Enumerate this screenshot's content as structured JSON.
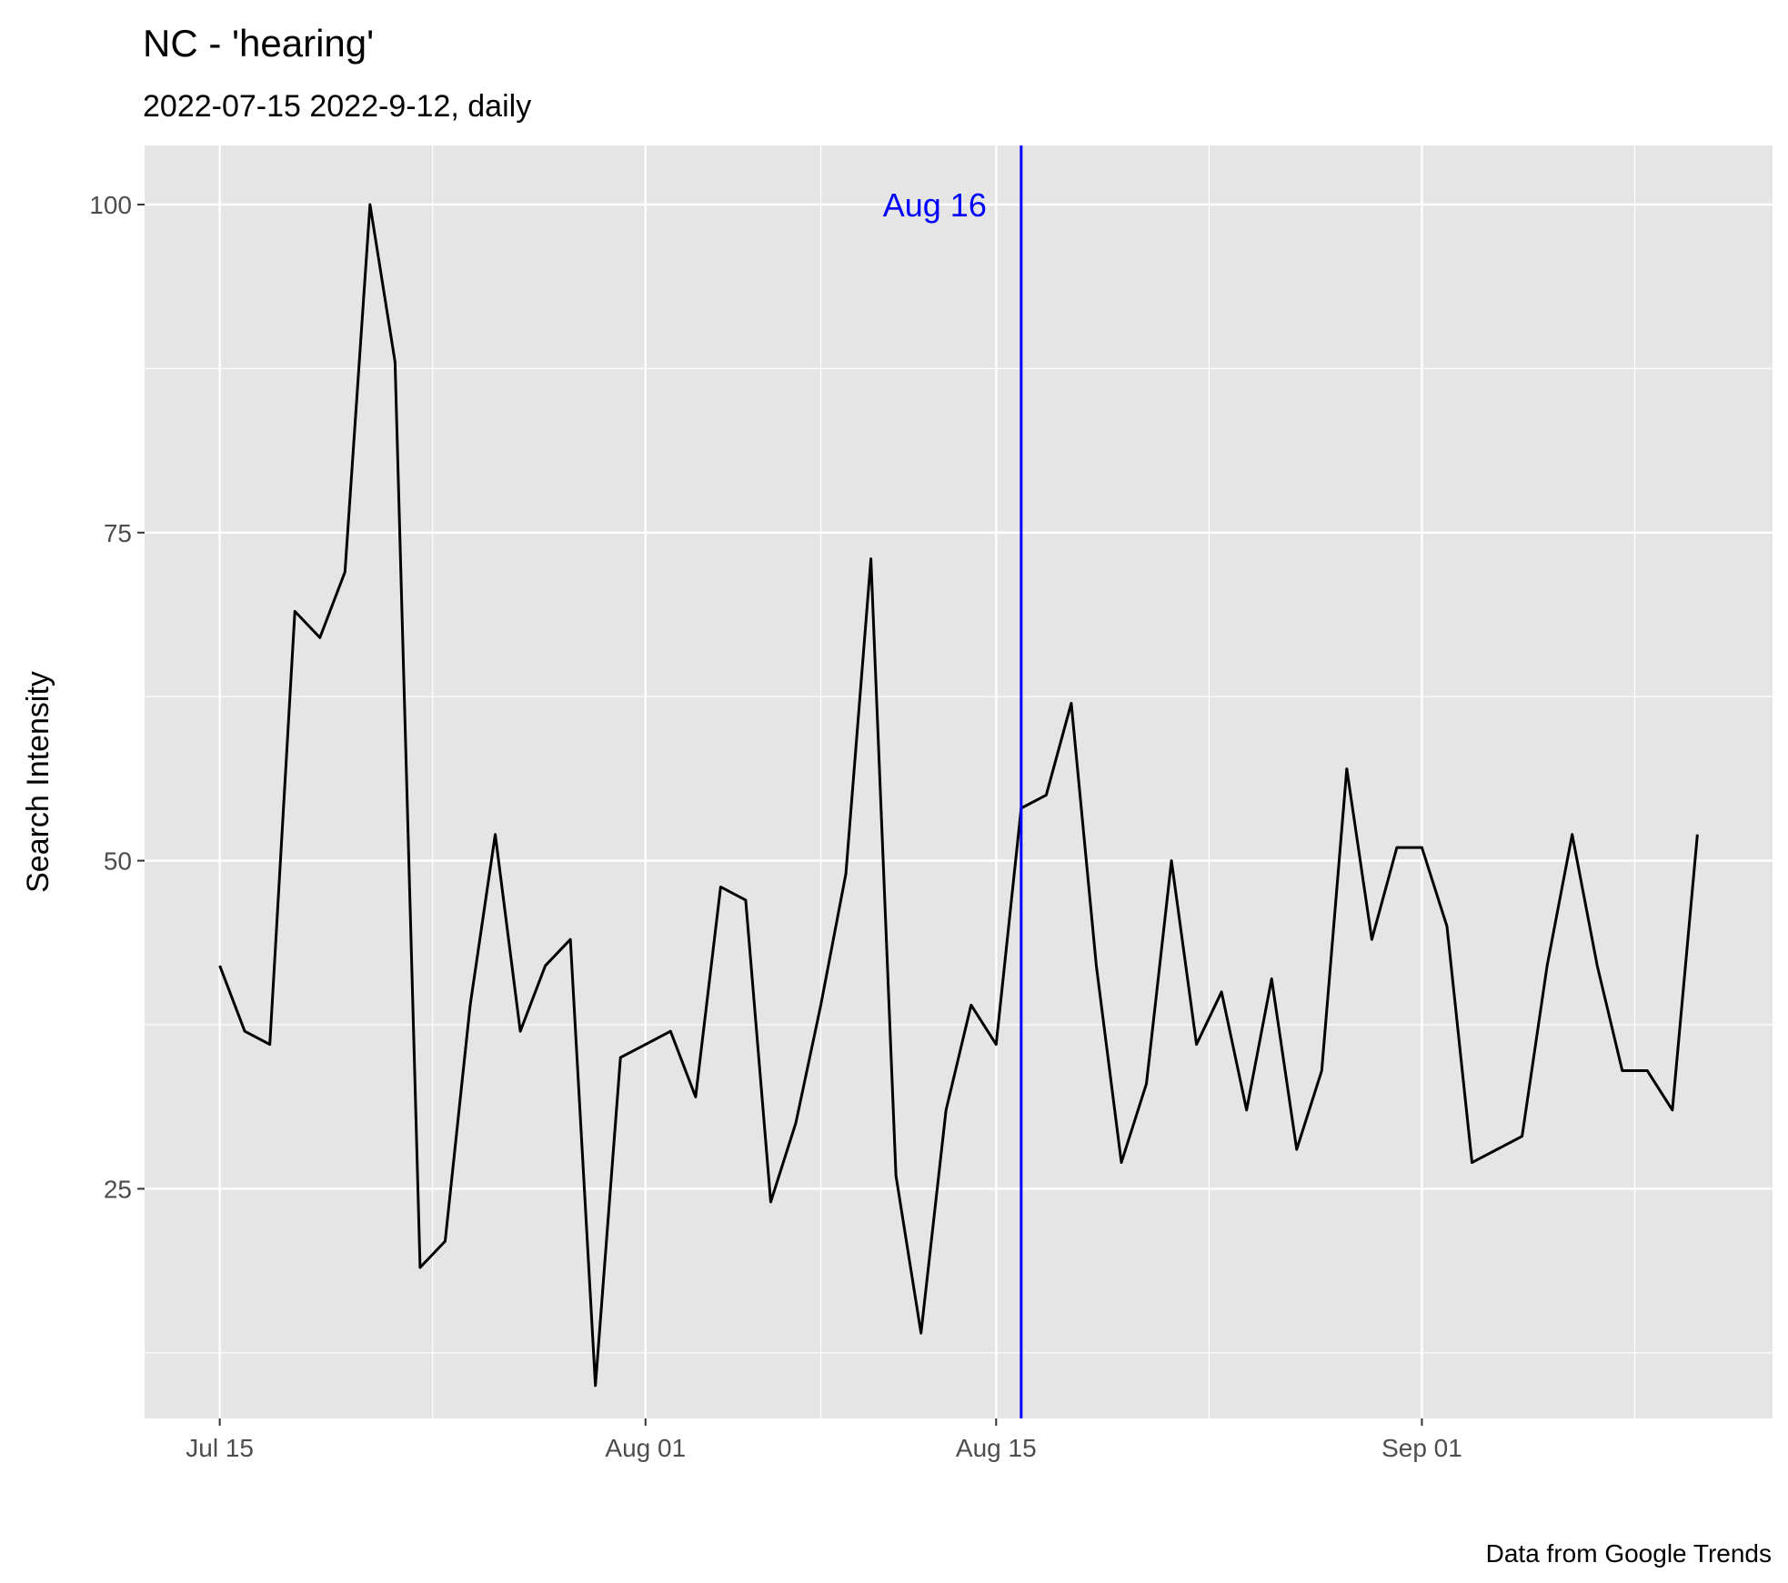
{
  "chart_data": {
    "type": "line",
    "title": "NC  - 'hearing'",
    "subtitle": "2022-07-15 2022-9-12, daily",
    "xlabel": "",
    "ylabel": "Search Intensity",
    "caption": "Data from Google Trends",
    "x_start": "2022-07-15",
    "x_end": "2022-09-12",
    "xlim": [
      "2022-07-12",
      "2022-09-15"
    ],
    "ylim": [
      7.5,
      104.5
    ],
    "x_ticks": [
      {
        "date": "2022-07-15",
        "label": "Jul 15"
      },
      {
        "date": "2022-08-01",
        "label": "Aug 01"
      },
      {
        "date": "2022-08-15",
        "label": "Aug 15"
      },
      {
        "date": "2022-09-01",
        "label": "Sep 01"
      }
    ],
    "y_ticks": [
      25,
      50,
      75,
      100
    ],
    "grid": true,
    "series": [
      {
        "color": "#000000",
        "values": [
          42,
          37,
          36,
          69,
          67,
          72,
          100,
          88,
          19,
          21,
          39,
          52,
          37,
          42,
          44,
          10,
          35,
          36,
          37,
          32,
          48,
          47,
          24,
          30,
          39,
          49,
          73,
          26,
          14,
          31,
          39,
          36,
          54,
          55,
          62,
          42,
          27,
          33,
          50,
          36,
          40,
          31,
          41,
          28,
          34,
          57,
          44,
          51,
          51,
          45,
          27,
          28,
          29,
          42,
          52,
          42,
          34,
          34,
          31,
          52
        ]
      }
    ],
    "vline": {
      "date": "2022-08-16",
      "label": "Aug 16",
      "color": "#0000ff"
    }
  }
}
